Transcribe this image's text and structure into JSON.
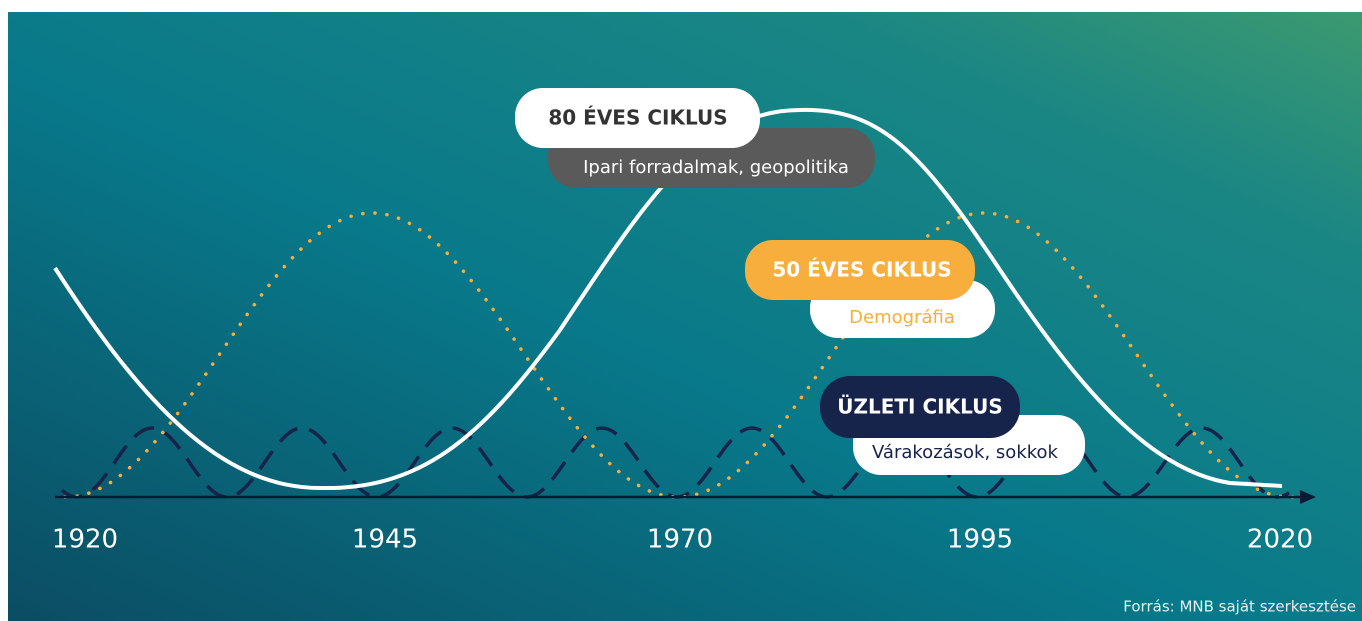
{
  "axis": {
    "labels": [
      "1920",
      "1945",
      "1970",
      "1995",
      "2020"
    ]
  },
  "cycles": [
    {
      "title": "80 ÉVES CIKLUS",
      "subtitle": "Ipari forradalmak, geopolitika"
    },
    {
      "title": "50 ÉVES CIKLUS",
      "subtitle": "Demográfia"
    },
    {
      "title": "ÜZLETI CIKLUS",
      "subtitle": "Várakozások, sokkok"
    }
  ],
  "source": "Forrás: MNB saját szerkesztése"
}
